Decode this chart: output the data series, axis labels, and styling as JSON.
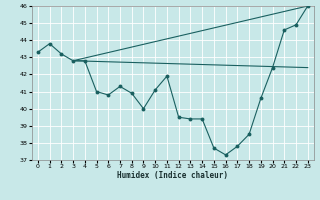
{
  "xlabel": "Humidex (Indice chaleur)",
  "xlim": [
    -0.5,
    23.5
  ],
  "ylim": [
    37,
    46
  ],
  "yticks": [
    37,
    38,
    39,
    40,
    41,
    42,
    43,
    44,
    45,
    46
  ],
  "xticks": [
    0,
    1,
    2,
    3,
    4,
    5,
    6,
    7,
    8,
    9,
    10,
    11,
    12,
    13,
    14,
    15,
    16,
    17,
    18,
    19,
    20,
    21,
    22,
    23
  ],
  "bg_color": "#c8e8e8",
  "line_color": "#1a6060",
  "grid_color": "#ffffff",
  "main_line": {
    "x": [
      0,
      1,
      2,
      3,
      4,
      5,
      6,
      7,
      8,
      9,
      10,
      11,
      12,
      13,
      14,
      15,
      16,
      17,
      18,
      19,
      20,
      21,
      22,
      23
    ],
    "y": [
      43.3,
      43.8,
      43.2,
      42.8,
      42.8,
      41.0,
      40.8,
      41.3,
      40.9,
      40.0,
      41.1,
      41.9,
      39.5,
      39.4,
      39.4,
      37.7,
      37.3,
      37.8,
      38.5,
      40.6,
      42.4,
      44.6,
      44.9,
      46.0
    ]
  },
  "straight_line_upper": {
    "x": [
      3,
      23
    ],
    "y": [
      42.8,
      46.0
    ]
  },
  "straight_line_lower": {
    "x": [
      3,
      23
    ],
    "y": [
      42.8,
      42.4
    ]
  }
}
